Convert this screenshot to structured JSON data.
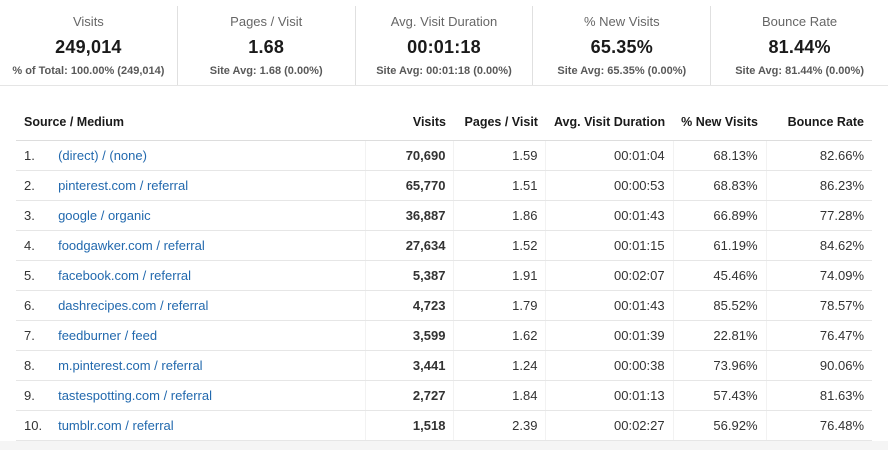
{
  "colors": {
    "link_blue": "#2269ae",
    "divider": "#e0e0e0"
  },
  "scorecards": [
    {
      "title": "Visits",
      "value": "249,014",
      "subtitle": "% of Total: 100.00% (249,014)"
    },
    {
      "title": "Pages / Visit",
      "value": "1.68",
      "subtitle": "Site Avg: 1.68 (0.00%)"
    },
    {
      "title": "Avg. Visit Duration",
      "value": "00:01:18",
      "subtitle": "Site Avg: 00:01:18 (0.00%)"
    },
    {
      "title": "% New Visits",
      "value": "65.35%",
      "subtitle": "Site Avg: 65.35% (0.00%)"
    },
    {
      "title": "Bounce Rate",
      "value": "81.44%",
      "subtitle": "Site Avg: 81.44% (0.00%)"
    }
  ],
  "table": {
    "columns": [
      "Source / Medium",
      "Visits",
      "Pages / Visit",
      "Avg. Visit Duration",
      "% New Visits",
      "Bounce Rate"
    ],
    "rows": [
      {
        "rank": "1.",
        "source": "(direct) / (none)",
        "visits": "70,690",
        "pages_per_visit": "1.59",
        "avg_visit_duration": "00:01:04",
        "pct_new_visits": "68.13%",
        "bounce_rate": "82.66%"
      },
      {
        "rank": "2.",
        "source": "pinterest.com / referral",
        "visits": "65,770",
        "pages_per_visit": "1.51",
        "avg_visit_duration": "00:00:53",
        "pct_new_visits": "68.83%",
        "bounce_rate": "86.23%"
      },
      {
        "rank": "3.",
        "source": "google / organic",
        "visits": "36,887",
        "pages_per_visit": "1.86",
        "avg_visit_duration": "00:01:43",
        "pct_new_visits": "66.89%",
        "bounce_rate": "77.28%"
      },
      {
        "rank": "4.",
        "source": "foodgawker.com / referral",
        "visits": "27,634",
        "pages_per_visit": "1.52",
        "avg_visit_duration": "00:01:15",
        "pct_new_visits": "61.19%",
        "bounce_rate": "84.62%"
      },
      {
        "rank": "5.",
        "source": "facebook.com / referral",
        "visits": "5,387",
        "pages_per_visit": "1.91",
        "avg_visit_duration": "00:02:07",
        "pct_new_visits": "45.46%",
        "bounce_rate": "74.09%"
      },
      {
        "rank": "6.",
        "source": "dashrecipes.com / referral",
        "visits": "4,723",
        "pages_per_visit": "1.79",
        "avg_visit_duration": "00:01:43",
        "pct_new_visits": "85.52%",
        "bounce_rate": "78.57%"
      },
      {
        "rank": "7.",
        "source": "feedburner / feed",
        "visits": "3,599",
        "pages_per_visit": "1.62",
        "avg_visit_duration": "00:01:39",
        "pct_new_visits": "22.81%",
        "bounce_rate": "76.47%"
      },
      {
        "rank": "8.",
        "source": "m.pinterest.com / referral",
        "visits": "3,441",
        "pages_per_visit": "1.24",
        "avg_visit_duration": "00:00:38",
        "pct_new_visits": "73.96%",
        "bounce_rate": "90.06%"
      },
      {
        "rank": "9.",
        "source": "tastespotting.com / referral",
        "visits": "2,727",
        "pages_per_visit": "1.84",
        "avg_visit_duration": "00:01:13",
        "pct_new_visits": "57.43%",
        "bounce_rate": "81.63%"
      },
      {
        "rank": "10.",
        "source": "tumblr.com / referral",
        "visits": "1,518",
        "pages_per_visit": "2.39",
        "avg_visit_duration": "00:02:27",
        "pct_new_visits": "56.92%",
        "bounce_rate": "76.48%"
      }
    ]
  }
}
